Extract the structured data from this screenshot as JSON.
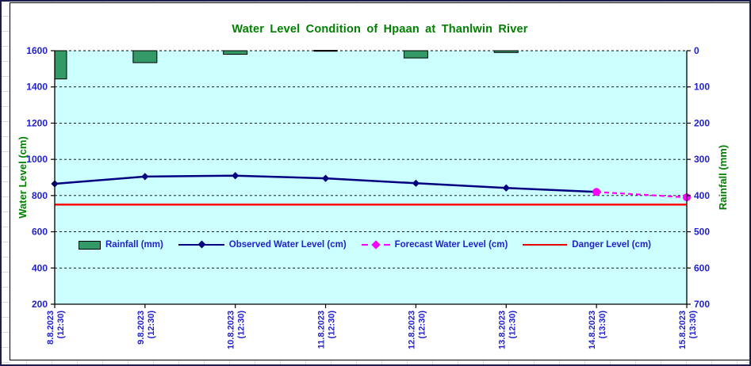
{
  "chart_data": {
    "type": "combo",
    "title": "Water Level Condition of Hpaan at Thanlwin River",
    "title_color": "#008000",
    "tick_label_color": "#2222CC",
    "axis_title_color": "#008000",
    "plot_bg": "#CCFFFF",
    "grid": "dashed-horizontal",
    "categories": [
      "8.8.2023 (12:30)",
      "9.8.2023 (12:30)",
      "10.8.2023 (12:30)",
      "11.8.2023 (12:30)",
      "12.8.2023 (12:30)",
      "13.8.2023 (12:30)",
      "14.8.2023 (13:30)",
      "15.8.2023 (13:30)"
    ],
    "category_dates": [
      "8.8.2023",
      "9.8.2023",
      "10.8.2023",
      "11.8.2023",
      "12.8.2023",
      "13.8.2023",
      "14.8.2023",
      "15.8.2023"
    ],
    "category_times": [
      "(12:30)",
      "(12:30)",
      "(12:30)",
      "(12:30)",
      "(12:30)",
      "(12:30)",
      "(13:30)",
      "(13:30)"
    ],
    "series": [
      {
        "name": "Rainfall (mm)",
        "type": "bar",
        "axis": "right",
        "color": "#339966",
        "values": [
          78,
          33,
          10,
          0,
          20,
          5,
          null,
          null
        ]
      },
      {
        "name": "Observed Water Level (cm)",
        "type": "line",
        "axis": "left",
        "color": "#000080",
        "marker": "diamond",
        "values": [
          865,
          905,
          910,
          895,
          868,
          842,
          820,
          null
        ]
      },
      {
        "name": "Forecast Water Level (cm)",
        "type": "line",
        "axis": "left",
        "color": "#FF00FF",
        "dashed": true,
        "marker": "circle",
        "values": [
          null,
          null,
          null,
          null,
          null,
          null,
          820,
          790
        ]
      },
      {
        "name": "Danger Level (cm)",
        "type": "hline",
        "axis": "left",
        "color": "#FF0000",
        "value": 750
      }
    ],
    "left_axis": {
      "title": "Water Level (cm)",
      "min": 200,
      "max": 1600,
      "ticks": [
        1600,
        1400,
        1200,
        1000,
        800,
        600,
        400,
        200
      ]
    },
    "right_axis": {
      "title": "Rainfall (mm)",
      "min": 0,
      "max": 700,
      "reversed": true,
      "ticks": [
        0,
        100,
        200,
        300,
        400,
        500,
        600,
        700
      ]
    },
    "legend_position": "inside-middle"
  }
}
